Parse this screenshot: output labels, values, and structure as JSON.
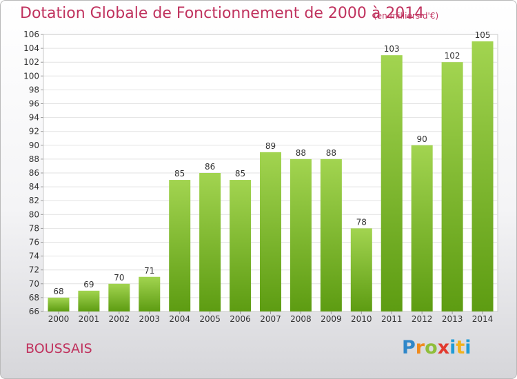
{
  "header": {
    "title": "Dotation Globale de Fonctionnement de 2000 à 2014",
    "unit": "(en milliers d'€)"
  },
  "footer": {
    "town": "BOUSSAIS",
    "logo": "Proxiti"
  },
  "colors": {
    "accent": "#c0325e",
    "bar_light": "#9fd14b",
    "bar_dark": "#5f9e14",
    "grid": "#e2e2e2"
  },
  "chart_data": {
    "type": "bar",
    "title": "Dotation Globale de Fonctionnement de 2000 à 2014",
    "subtitle": "(en milliers d'€)",
    "xlabel": "",
    "ylabel": "",
    "categories": [
      "2000",
      "2001",
      "2002",
      "2003",
      "2004",
      "2005",
      "2006",
      "2007",
      "2008",
      "2009",
      "2010",
      "2011",
      "2012",
      "2013",
      "2014"
    ],
    "values": [
      68,
      69,
      70,
      71,
      85,
      86,
      85,
      89,
      88,
      88,
      78,
      103,
      90,
      102,
      105
    ],
    "ylim": [
      66,
      106
    ],
    "yticks": [
      66,
      68,
      70,
      72,
      74,
      76,
      78,
      80,
      82,
      84,
      86,
      88,
      90,
      92,
      94,
      96,
      98,
      100,
      102,
      104,
      106
    ],
    "grid": true,
    "legend": "none"
  }
}
